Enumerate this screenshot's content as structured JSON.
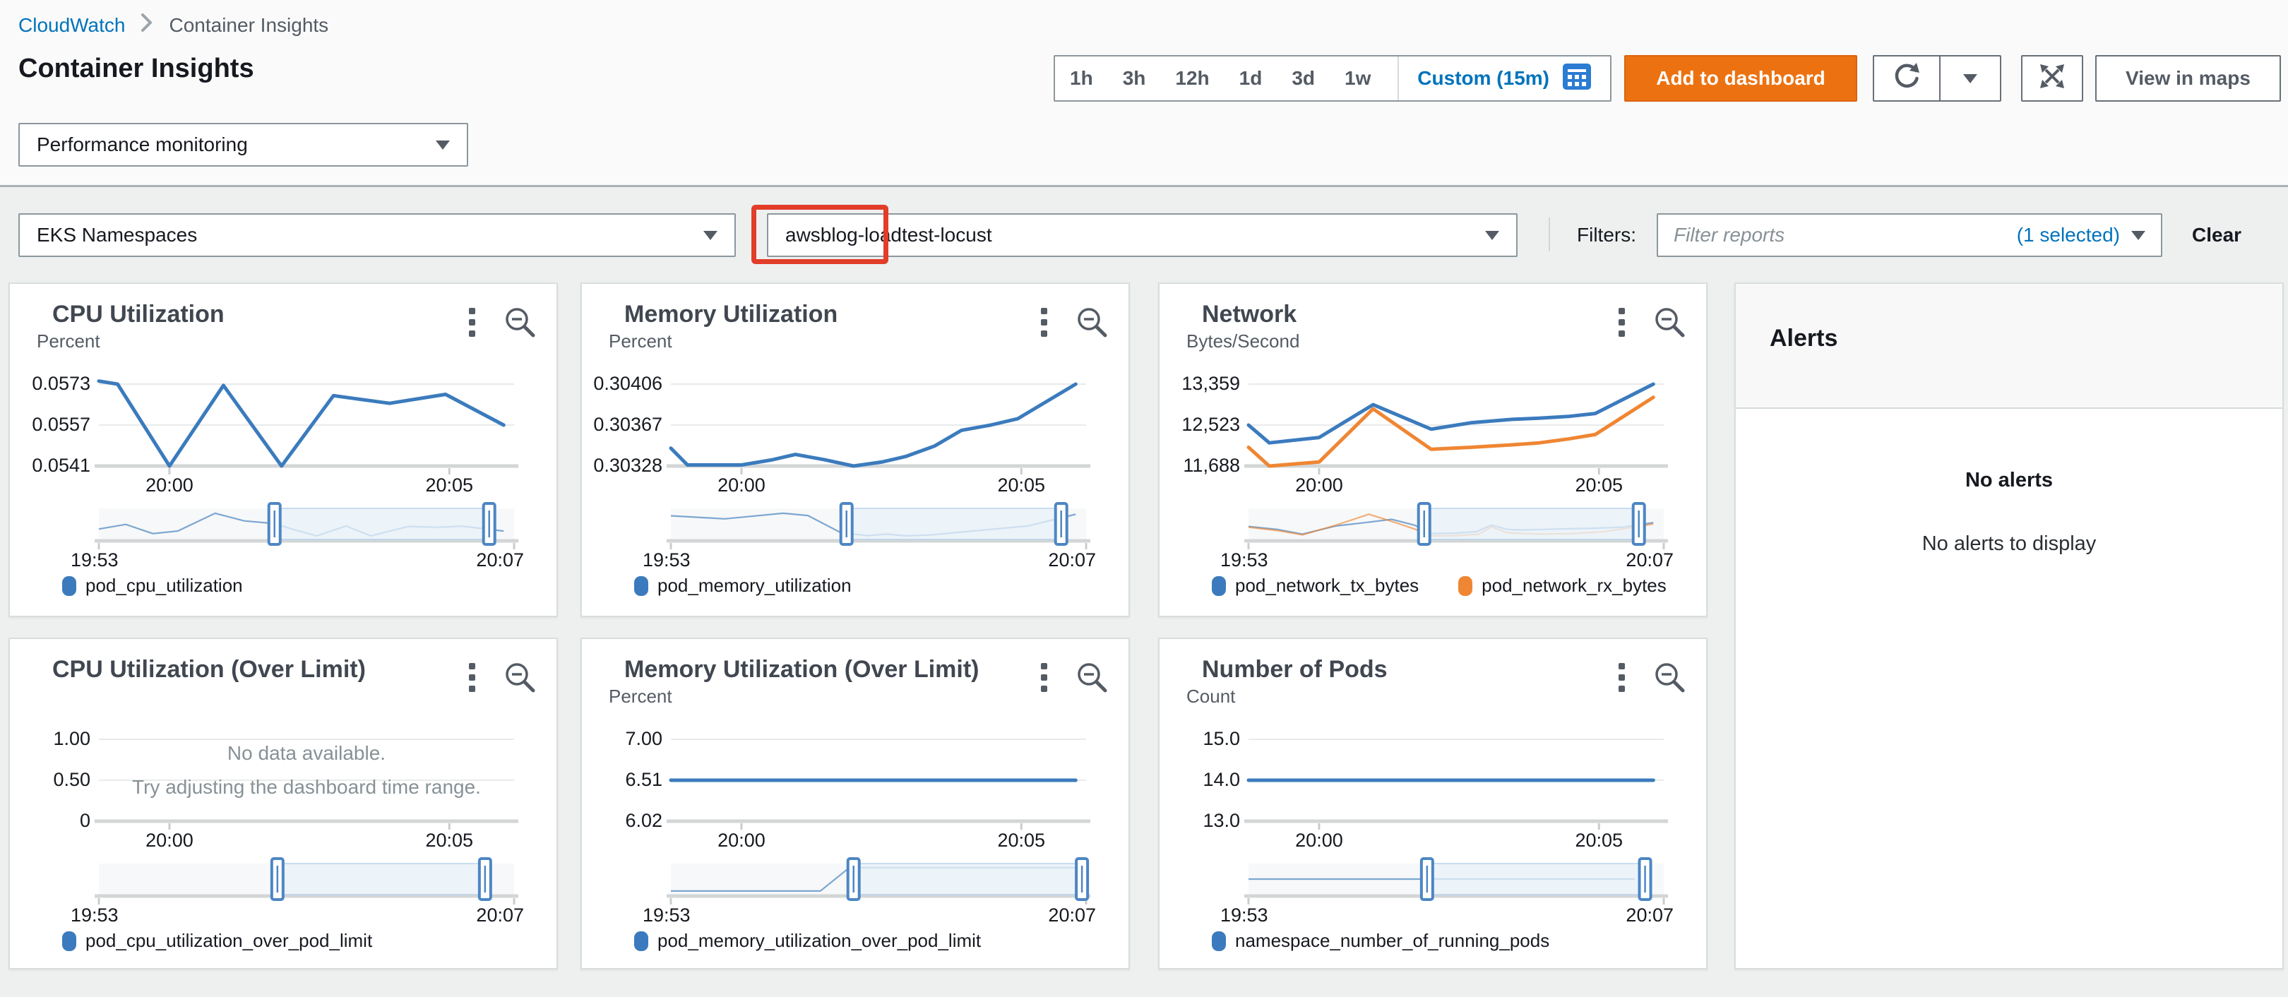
{
  "breadcrumb": {
    "root": "CloudWatch",
    "current": "Container Insights"
  },
  "header": {
    "title": "Container Insights"
  },
  "time_controls": {
    "ranges": [
      "1h",
      "3h",
      "12h",
      "1d",
      "3d",
      "1w"
    ],
    "custom": "Custom (15m)",
    "add_button": "Add to dashboard",
    "view_in_maps": "View in maps"
  },
  "view_selector": {
    "value": "Performance monitoring"
  },
  "filter_bar": {
    "namespace_type": "EKS Namespaces",
    "selected_namespace": "awsblog-loadtest-locust",
    "filters_label": "Filters:",
    "placeholder": "Filter reports",
    "selected_count": "(1 selected)",
    "clear": "Clear"
  },
  "alerts": {
    "title": "Alerts",
    "empty_title": "No alerts",
    "empty_message": "No alerts to display"
  },
  "colors": {
    "accent_blue": "#0073bb",
    "button_orange": "#ec7211",
    "annotation_red": "#e23d28",
    "series_blue": "#3b7bbd",
    "series_orange": "#ef8633"
  },
  "chart_data": [
    {
      "id": "cpu-utilization",
      "type": "line",
      "title": "CPU Utilization",
      "unit": "Percent",
      "ylim": [
        0.0541,
        0.057907
      ],
      "y_ticks": [
        {
          "label": "0.0573",
          "value": 0.0573
        },
        {
          "label": "0.0557",
          "value": 0.0557
        },
        {
          "label": "0.0541",
          "value": 0.0541
        }
      ],
      "x_ticks": [
        {
          "label": "20:00",
          "pos": 0.17
        },
        {
          "label": "20:05",
          "pos": 0.844
        }
      ],
      "range": [
        "19:53",
        "20:07"
      ],
      "brush": [
        0.423,
        0.94
      ],
      "series": [
        {
          "name": "pod_cpu_utilization",
          "color": "#3b7bbd",
          "points": [
            [
              0,
              0.05742
            ],
            [
              0.045,
              0.0573
            ],
            [
              0.17,
              0.0541
            ],
            [
              0.3,
              0.05725
            ],
            [
              0.44,
              0.0541
            ],
            [
              0.565,
              0.05685
            ],
            [
              0.7,
              0.05655
            ],
            [
              0.835,
              0.0569
            ],
            [
              0.975,
              0.0557
            ]
          ]
        }
      ],
      "mini_series": [
        {
          "color": "#3b7bbd",
          "points": [
            [
              0,
              0.3
            ],
            [
              0.065,
              0.48
            ],
            [
              0.13,
              0.12
            ],
            [
              0.19,
              0.22
            ],
            [
              0.28,
              0.92
            ],
            [
              0.35,
              0.62
            ],
            [
              0.42,
              0.52
            ],
            [
              0.475,
              0.25
            ],
            [
              0.525,
              0.03
            ],
            [
              0.595,
              0.42
            ],
            [
              0.655,
              0.03
            ],
            [
              0.745,
              0.4
            ],
            [
              0.815,
              0.37
            ],
            [
              0.875,
              0.41
            ],
            [
              0.975,
              0.22
            ]
          ]
        }
      ],
      "legend": [
        {
          "label": "pod_cpu_utilization",
          "color": "#3b7bbd"
        }
      ]
    },
    {
      "id": "memory-utilization",
      "type": "line",
      "title": "Memory Utilization",
      "unit": "Percent",
      "ylim": [
        0.30328,
        0.304208
      ],
      "y_ticks": [
        {
          "label": "0.30406",
          "value": 0.30406
        },
        {
          "label": "0.30367",
          "value": 0.30367
        },
        {
          "label": "0.30328",
          "value": 0.30328
        }
      ],
      "x_ticks": [
        {
          "label": "20:00",
          "pos": 0.17
        },
        {
          "label": "20:05",
          "pos": 0.844
        }
      ],
      "range": [
        "19:53",
        "20:07"
      ],
      "brush": [
        0.423,
        0.94
      ],
      "series": [
        {
          "name": "pod_memory_utilization",
          "color": "#3b7bbd",
          "points": [
            [
              0,
              0.30345
            ],
            [
              0.04,
              0.30329
            ],
            [
              0.17,
              0.30329
            ],
            [
              0.245,
              0.30334
            ],
            [
              0.3,
              0.30339
            ],
            [
              0.37,
              0.30334
            ],
            [
              0.44,
              0.30328
            ],
            [
              0.51,
              0.30332
            ],
            [
              0.565,
              0.30337
            ],
            [
              0.635,
              0.30347
            ],
            [
              0.7,
              0.30362
            ],
            [
              0.77,
              0.30367
            ],
            [
              0.835,
              0.30373
            ],
            [
              0.975,
              0.30406
            ]
          ]
        }
      ],
      "mini_series": [
        {
          "color": "#3b7bbd",
          "points": [
            [
              0,
              0.82
            ],
            [
              0.13,
              0.7
            ],
            [
              0.27,
              0.92
            ],
            [
              0.33,
              0.83
            ],
            [
              0.41,
              0.15
            ],
            [
              0.475,
              0.04
            ],
            [
              0.52,
              0.1
            ],
            [
              0.565,
              0.03
            ],
            [
              0.62,
              0.06
            ],
            [
              0.7,
              0.18
            ],
            [
              0.78,
              0.3
            ],
            [
              0.86,
              0.42
            ],
            [
              0.975,
              0.88
            ]
          ]
        }
      ],
      "legend": [
        {
          "label": "pod_memory_utilization",
          "color": "#3b7bbd"
        }
      ]
    },
    {
      "id": "network",
      "type": "line",
      "title": "Network",
      "unit": "Bytes/Second",
      "ylim": [
        11688,
        13676
      ],
      "y_ticks": [
        {
          "label": "13,359",
          "value": 13359
        },
        {
          "label": "12,523",
          "value": 12523
        },
        {
          "label": "11,688",
          "value": 11688
        }
      ],
      "x_ticks": [
        {
          "label": "20:00",
          "pos": 0.17
        },
        {
          "label": "20:05",
          "pos": 0.844
        }
      ],
      "range": [
        "19:53",
        "20:07"
      ],
      "brush": [
        0.423,
        0.94
      ],
      "series": [
        {
          "name": "pod_network_tx_bytes",
          "color": "#3b7bbd",
          "points": [
            [
              0,
              12523
            ],
            [
              0.05,
              12160
            ],
            [
              0.17,
              12270
            ],
            [
              0.3,
              12940
            ],
            [
              0.44,
              12440
            ],
            [
              0.535,
              12570
            ],
            [
              0.635,
              12640
            ],
            [
              0.7,
              12665
            ],
            [
              0.77,
              12700
            ],
            [
              0.835,
              12760
            ],
            [
              0.975,
              13359
            ]
          ]
        },
        {
          "name": "pod_network_rx_bytes",
          "color": "#ef8633",
          "points": [
            [
              0,
              12070
            ],
            [
              0.05,
              11688
            ],
            [
              0.17,
              11770
            ],
            [
              0.3,
              12855
            ],
            [
              0.44,
              12030
            ],
            [
              0.535,
              12070
            ],
            [
              0.635,
              12120
            ],
            [
              0.7,
              12160
            ],
            [
              0.77,
              12240
            ],
            [
              0.835,
              12330
            ],
            [
              0.975,
              13090
            ]
          ]
        }
      ],
      "mini_series": [
        {
          "color": "#3b7bbd",
          "points": [
            [
              0,
              0.4
            ],
            [
              0.07,
              0.28
            ],
            [
              0.13,
              0.1
            ],
            [
              0.21,
              0.42
            ],
            [
              0.28,
              0.55
            ],
            [
              0.345,
              0.68
            ],
            [
              0.4,
              0.45
            ],
            [
              0.44,
              0.12
            ],
            [
              0.5,
              0.14
            ],
            [
              0.55,
              0.2
            ],
            [
              0.585,
              0.45
            ],
            [
              0.625,
              0.28
            ],
            [
              0.66,
              0.26
            ],
            [
              0.745,
              0.3
            ],
            [
              0.83,
              0.33
            ],
            [
              0.9,
              0.37
            ],
            [
              0.975,
              0.55
            ]
          ]
        },
        {
          "color": "#ef8633",
          "points": [
            [
              0,
              0.37
            ],
            [
              0.07,
              0.24
            ],
            [
              0.13,
              0.07
            ],
            [
              0.21,
              0.45
            ],
            [
              0.29,
              0.88
            ],
            [
              0.345,
              0.6
            ],
            [
              0.4,
              0.3
            ],
            [
              0.44,
              0.03
            ],
            [
              0.5,
              0.04
            ],
            [
              0.555,
              0.1
            ],
            [
              0.585,
              0.38
            ],
            [
              0.625,
              0.15
            ],
            [
              0.7,
              0.1
            ],
            [
              0.78,
              0.12
            ],
            [
              0.86,
              0.2
            ],
            [
              0.975,
              0.5
            ]
          ]
        }
      ],
      "legend": [
        {
          "label": "pod_network_tx_bytes",
          "color": "#3b7bbd"
        },
        {
          "label": "pod_network_rx_bytes",
          "color": "#ef8633"
        }
      ]
    },
    {
      "id": "cpu-utilization-over-limit",
      "type": "line",
      "title": "CPU Utilization (Over Limit)",
      "unit": null,
      "ylim": [
        0,
        1.1896
      ],
      "y_ticks": [
        {
          "label": "1.00",
          "value": 1.0
        },
        {
          "label": "0.50",
          "value": 0.5
        },
        {
          "label": "0",
          "value": 0
        }
      ],
      "x_ticks": [
        {
          "label": "20:00",
          "pos": 0.17
        },
        {
          "label": "20:05",
          "pos": 0.844
        }
      ],
      "range": [
        "19:53",
        "20:07"
      ],
      "brush": [
        0.43,
        0.93
      ],
      "empty": {
        "title": "No data available.",
        "hint": "Try adjusting the dashboard time range."
      },
      "series": [],
      "mini_series": [],
      "legend": [
        {
          "label": "pod_cpu_utilization_over_pod_limit",
          "color": "#3b7bbd"
        }
      ]
    },
    {
      "id": "memory-utilization-over-limit",
      "type": "line",
      "title": "Memory Utilization (Over Limit)",
      "unit": "Percent",
      "ylim": [
        6.02,
        7.1859
      ],
      "y_ticks": [
        {
          "label": "7.00",
          "value": 7.0
        },
        {
          "label": "6.51",
          "value": 6.51
        },
        {
          "label": "6.02",
          "value": 6.02
        }
      ],
      "x_ticks": [
        {
          "label": "20:00",
          "pos": 0.17
        },
        {
          "label": "20:05",
          "pos": 0.844
        }
      ],
      "range": [
        "19:53",
        "20:07"
      ],
      "brush": [
        0.44,
        0.99
      ],
      "series": [
        {
          "name": "pod_memory_utilization_over_pod_limit",
          "color": "#3b7bbd",
          "points": [
            [
              0,
              6.51
            ],
            [
              0.975,
              6.51
            ]
          ]
        }
      ],
      "mini_series": [
        {
          "color": "#3b7bbd",
          "points": [
            [
              0,
              0.03
            ],
            [
              0.36,
              0.03
            ],
            [
              0.43,
              0.95
            ],
            [
              0.99,
              0.95
            ]
          ]
        }
      ],
      "legend": [
        {
          "label": "pod_memory_utilization_over_pod_limit",
          "color": "#3b7bbd"
        }
      ]
    },
    {
      "id": "number-of-pods",
      "type": "line",
      "title": "Number of Pods",
      "unit": "Count",
      "ylim": [
        13,
        15.379
      ],
      "y_ticks": [
        {
          "label": "15.0",
          "value": 15.0
        },
        {
          "label": "14.0",
          "value": 14.0
        },
        {
          "label": "13.0",
          "value": 13.0
        }
      ],
      "x_ticks": [
        {
          "label": "20:00",
          "pos": 0.17
        },
        {
          "label": "20:05",
          "pos": 0.844
        }
      ],
      "range": [
        "19:53",
        "20:07"
      ],
      "brush": [
        0.43,
        0.955
      ],
      "series": [
        {
          "name": "namespace_number_of_running_pods",
          "color": "#3b7bbd",
          "points": [
            [
              0,
              14
            ],
            [
              0.975,
              14
            ]
          ]
        }
      ],
      "mini_series": [
        {
          "color": "#3b7bbd",
          "points": [
            [
              0,
              0.5
            ],
            [
              0.93,
              0.5
            ]
          ]
        }
      ],
      "legend": [
        {
          "label": "namespace_number_of_running_pods",
          "color": "#3b7bbd"
        }
      ]
    }
  ]
}
